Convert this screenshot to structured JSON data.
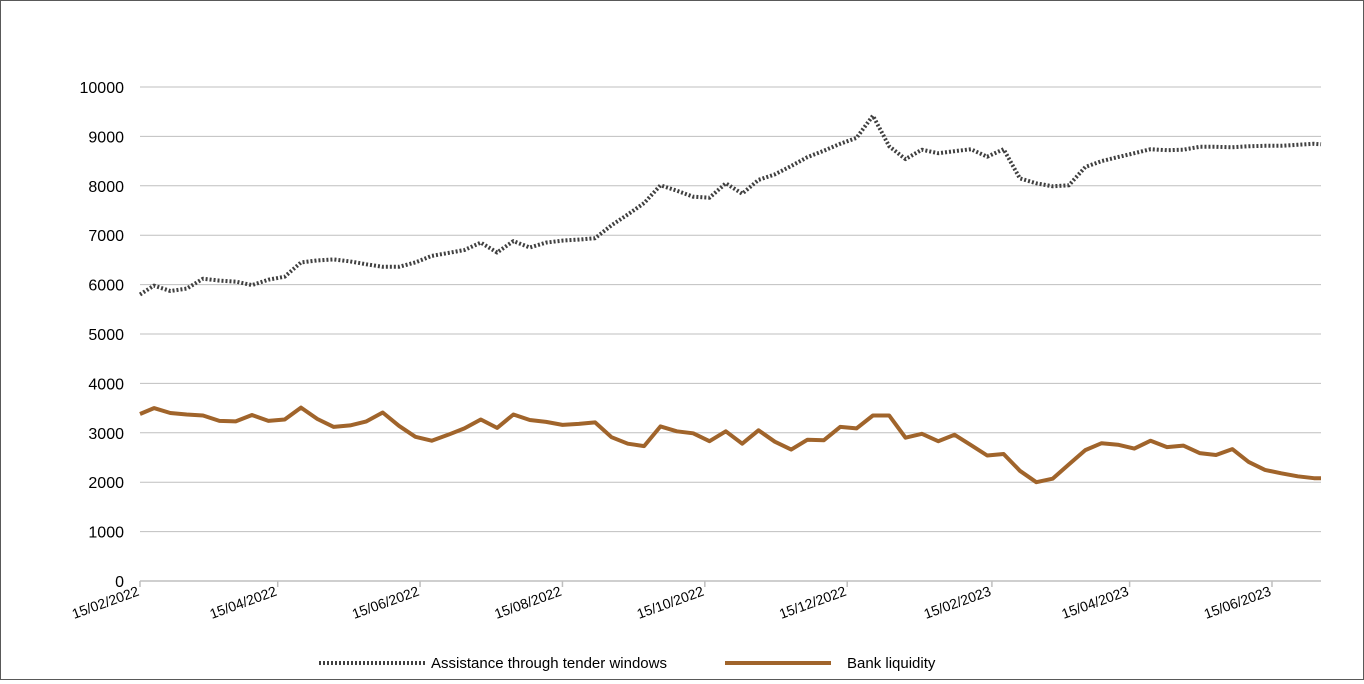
{
  "chart_data": {
    "type": "line",
    "title": "",
    "xlabel": "",
    "ylabel": "",
    "ylim": [
      0,
      10000
    ],
    "y_ticks": [
      "0",
      "1000",
      "2000",
      "3000",
      "4000",
      "5000",
      "6000",
      "7000",
      "8000",
      "9000",
      "10000"
    ],
    "x_range": [
      "2022-02-15",
      "2023-07-06"
    ],
    "x_ticks": [
      {
        "date": "2022-02-15",
        "label": "15/02/2022"
      },
      {
        "date": "2022-04-15",
        "label": "15/04/2022"
      },
      {
        "date": "2022-06-15",
        "label": "15/06/2022"
      },
      {
        "date": "2022-08-15",
        "label": "15/08/2022"
      },
      {
        "date": "2022-10-15",
        "label": "15/10/2022"
      },
      {
        "date": "2022-12-15",
        "label": "15/12/2022"
      },
      {
        "date": "2023-02-15",
        "label": "15/02/2023"
      },
      {
        "date": "2023-04-15",
        "label": "15/04/2023"
      },
      {
        "date": "2023-06-15",
        "label": "15/06/2023"
      }
    ],
    "grid": "horizontal",
    "legend_position": "bottom",
    "series": [
      {
        "name": "Assistance through tender windows",
        "color": "#404040",
        "style": "dotted",
        "points": [
          [
            "2022-02-15",
            5800
          ],
          [
            "2022-02-21",
            5980
          ],
          [
            "2022-02-28",
            5870
          ],
          [
            "2022-03-07",
            5920
          ],
          [
            "2022-03-14",
            6120
          ],
          [
            "2022-03-21",
            6080
          ],
          [
            "2022-03-28",
            6060
          ],
          [
            "2022-04-04",
            5990
          ],
          [
            "2022-04-11",
            6100
          ],
          [
            "2022-04-18",
            6160
          ],
          [
            "2022-04-25",
            6450
          ],
          [
            "2022-05-02",
            6490
          ],
          [
            "2022-05-09",
            6510
          ],
          [
            "2022-05-16",
            6470
          ],
          [
            "2022-05-23",
            6410
          ],
          [
            "2022-05-30",
            6360
          ],
          [
            "2022-06-06",
            6360
          ],
          [
            "2022-06-13",
            6450
          ],
          [
            "2022-06-20",
            6580
          ],
          [
            "2022-06-27",
            6640
          ],
          [
            "2022-07-04",
            6700
          ],
          [
            "2022-07-11",
            6850
          ],
          [
            "2022-07-18",
            6650
          ],
          [
            "2022-07-25",
            6880
          ],
          [
            "2022-08-01",
            6750
          ],
          [
            "2022-08-08",
            6850
          ],
          [
            "2022-08-15",
            6890
          ],
          [
            "2022-08-22",
            6910
          ],
          [
            "2022-08-29",
            6940
          ],
          [
            "2022-09-05",
            7200
          ],
          [
            "2022-09-12",
            7420
          ],
          [
            "2022-09-19",
            7650
          ],
          [
            "2022-09-26",
            8010
          ],
          [
            "2022-10-03",
            7900
          ],
          [
            "2022-10-10",
            7780
          ],
          [
            "2022-10-17",
            7760
          ],
          [
            "2022-10-24",
            8050
          ],
          [
            "2022-10-31",
            7840
          ],
          [
            "2022-11-07",
            8120
          ],
          [
            "2022-11-14",
            8230
          ],
          [
            "2022-11-21",
            8400
          ],
          [
            "2022-11-28",
            8580
          ],
          [
            "2022-12-05",
            8710
          ],
          [
            "2022-12-12",
            8850
          ],
          [
            "2022-12-19",
            8970
          ],
          [
            "2022-12-26",
            9420
          ],
          [
            "2023-01-02",
            8800
          ],
          [
            "2023-01-09",
            8540
          ],
          [
            "2023-01-16",
            8730
          ],
          [
            "2023-01-23",
            8660
          ],
          [
            "2023-01-30",
            8700
          ],
          [
            "2023-02-06",
            8740
          ],
          [
            "2023-02-13",
            8590
          ],
          [
            "2023-02-20",
            8740
          ],
          [
            "2023-02-27",
            8150
          ],
          [
            "2023-03-06",
            8050
          ],
          [
            "2023-03-13",
            7990
          ],
          [
            "2023-03-20",
            8010
          ],
          [
            "2023-03-27",
            8380
          ],
          [
            "2023-04-03",
            8500
          ],
          [
            "2023-04-10",
            8580
          ],
          [
            "2023-04-17",
            8660
          ],
          [
            "2023-04-24",
            8740
          ],
          [
            "2023-05-01",
            8720
          ],
          [
            "2023-05-08",
            8730
          ],
          [
            "2023-05-15",
            8790
          ],
          [
            "2023-05-22",
            8790
          ],
          [
            "2023-05-29",
            8780
          ],
          [
            "2023-06-05",
            8800
          ],
          [
            "2023-06-12",
            8810
          ],
          [
            "2023-06-19",
            8810
          ],
          [
            "2023-06-26",
            8830
          ],
          [
            "2023-07-03",
            8850
          ],
          [
            "2023-07-06",
            8840
          ]
        ]
      },
      {
        "name": "Bank liquidity",
        "color": "#A0642B",
        "style": "solid",
        "points": [
          [
            "2022-02-15",
            3380
          ],
          [
            "2022-02-21",
            3500
          ],
          [
            "2022-02-28",
            3400
          ],
          [
            "2022-03-07",
            3370
          ],
          [
            "2022-03-14",
            3350
          ],
          [
            "2022-03-21",
            3240
          ],
          [
            "2022-03-28",
            3230
          ],
          [
            "2022-04-04",
            3360
          ],
          [
            "2022-04-11",
            3240
          ],
          [
            "2022-04-18",
            3270
          ],
          [
            "2022-04-25",
            3510
          ],
          [
            "2022-05-02",
            3280
          ],
          [
            "2022-05-09",
            3120
          ],
          [
            "2022-05-16",
            3150
          ],
          [
            "2022-05-23",
            3230
          ],
          [
            "2022-05-30",
            3410
          ],
          [
            "2022-06-06",
            3140
          ],
          [
            "2022-06-13",
            2920
          ],
          [
            "2022-06-20",
            2840
          ],
          [
            "2022-06-27",
            2960
          ],
          [
            "2022-07-04",
            3090
          ],
          [
            "2022-07-11",
            3270
          ],
          [
            "2022-07-18",
            3100
          ],
          [
            "2022-07-25",
            3370
          ],
          [
            "2022-08-01",
            3260
          ],
          [
            "2022-08-08",
            3220
          ],
          [
            "2022-08-15",
            3160
          ],
          [
            "2022-08-22",
            3180
          ],
          [
            "2022-08-29",
            3210
          ],
          [
            "2022-09-05",
            2910
          ],
          [
            "2022-09-12",
            2780
          ],
          [
            "2022-09-19",
            2730
          ],
          [
            "2022-09-26",
            3130
          ],
          [
            "2022-10-03",
            3030
          ],
          [
            "2022-10-10",
            2990
          ],
          [
            "2022-10-17",
            2830
          ],
          [
            "2022-10-24",
            3030
          ],
          [
            "2022-10-31",
            2780
          ],
          [
            "2022-11-07",
            3050
          ],
          [
            "2022-11-14",
            2820
          ],
          [
            "2022-11-21",
            2660
          ],
          [
            "2022-11-28",
            2860
          ],
          [
            "2022-12-05",
            2850
          ],
          [
            "2022-12-12",
            3120
          ],
          [
            "2022-12-19",
            3090
          ],
          [
            "2022-12-26",
            3350
          ],
          [
            "2023-01-02",
            3350
          ],
          [
            "2023-01-09",
            2900
          ],
          [
            "2023-01-16",
            2980
          ],
          [
            "2023-01-23",
            2830
          ],
          [
            "2023-01-30",
            2960
          ],
          [
            "2023-02-06",
            2750
          ],
          [
            "2023-02-13",
            2540
          ],
          [
            "2023-02-20",
            2570
          ],
          [
            "2023-02-27",
            2230
          ],
          [
            "2023-03-06",
            2000
          ],
          [
            "2023-03-13",
            2070
          ],
          [
            "2023-03-20",
            2360
          ],
          [
            "2023-03-27",
            2650
          ],
          [
            "2023-04-03",
            2790
          ],
          [
            "2023-04-10",
            2760
          ],
          [
            "2023-04-17",
            2680
          ],
          [
            "2023-04-24",
            2840
          ],
          [
            "2023-05-01",
            2710
          ],
          [
            "2023-05-08",
            2740
          ],
          [
            "2023-05-15",
            2590
          ],
          [
            "2023-05-22",
            2550
          ],
          [
            "2023-05-29",
            2670
          ],
          [
            "2023-06-05",
            2410
          ],
          [
            "2023-06-12",
            2250
          ],
          [
            "2023-06-19",
            2180
          ],
          [
            "2023-06-26",
            2120
          ],
          [
            "2023-07-03",
            2080
          ],
          [
            "2023-07-06",
            2080
          ]
        ]
      }
    ]
  },
  "legend": {
    "items": [
      {
        "label": "Assistance through tender windows"
      },
      {
        "label": "Bank liquidity"
      }
    ]
  }
}
